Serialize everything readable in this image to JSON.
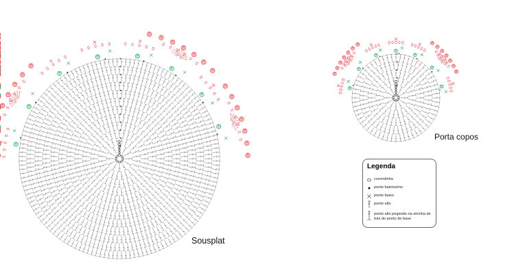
{
  "labels": {
    "sousplat": "Sousplat",
    "porta_copos": "Porta copos"
  },
  "legend": {
    "title": "Legenda",
    "items": [
      {
        "symbol": "chain-stitch-icon",
        "label": "correntinha"
      },
      {
        "symbol": "slip-stitch-icon",
        "label": "ponto baixíssimo"
      },
      {
        "symbol": "single-crochet-icon",
        "label": "ponto baixo"
      },
      {
        "symbol": "double-crochet-icon",
        "label": "ponto alto"
      },
      {
        "symbol": "back-loop-double-crochet-icon",
        "label": "ponto alto pegando na alcinha de trás do ponto de base"
      }
    ]
  },
  "colors": {
    "stitch_line": "#6e6e6e",
    "border_red": "#e8484e",
    "border_red_fill": "#f6b5b8",
    "border_green": "#2ea35c",
    "border_green_fill": "#b8eccb",
    "slip_stitch": "#111111"
  }
}
